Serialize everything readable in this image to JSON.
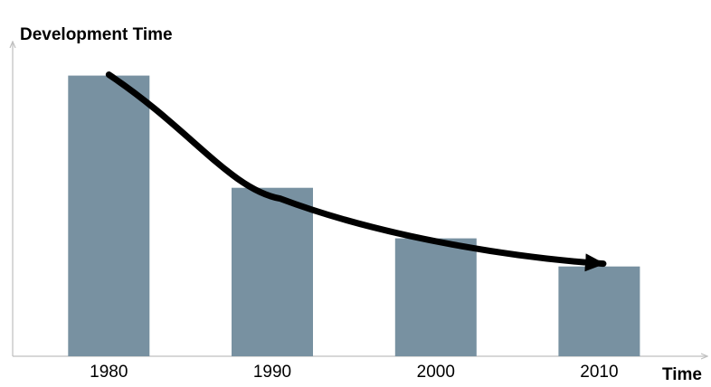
{
  "chart_data": {
    "type": "bar",
    "title": "",
    "ylabel": "Development Time",
    "xlabel": "Time",
    "categories": [
      "1980",
      "1990",
      "2000",
      "2010"
    ],
    "values": [
      100,
      60,
      42,
      32
    ],
    "ylim": [
      0,
      115
    ],
    "grid": false,
    "legend": "none",
    "bar_color": "#7891a1",
    "axis_color": "#bfbfbf",
    "trend_arrow": {
      "direction": "decreasing",
      "color": "#000000"
    }
  }
}
